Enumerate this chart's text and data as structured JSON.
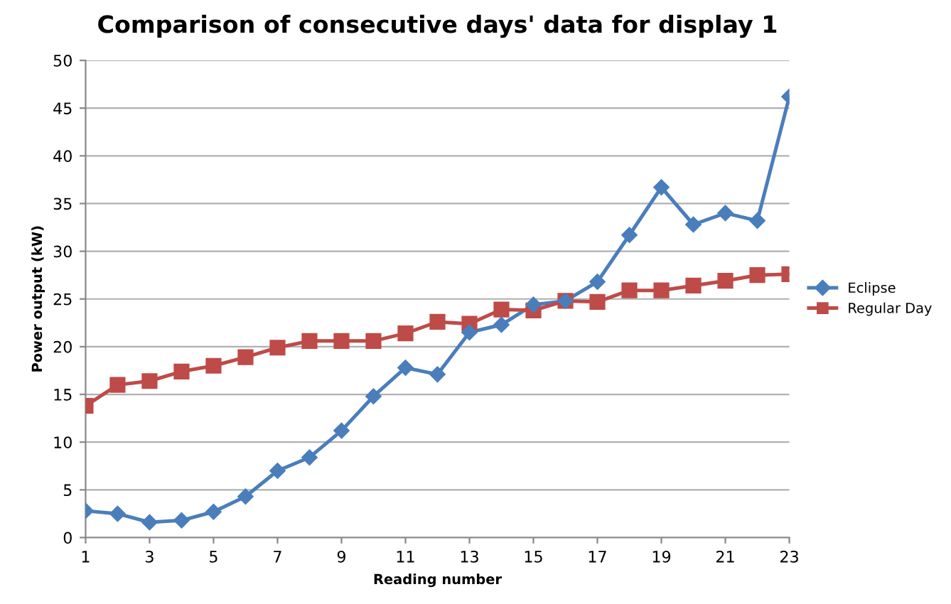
{
  "chart_data": {
    "type": "line",
    "title": "Comparison of consecutive days' data for display 1",
    "xlabel": "Reading number",
    "ylabel": "Power output (kW)",
    "x": [
      1,
      2,
      3,
      4,
      5,
      6,
      7,
      8,
      9,
      10,
      11,
      12,
      13,
      14,
      15,
      16,
      17,
      18,
      19,
      20,
      21,
      22,
      23
    ],
    "series": [
      {
        "name": "Eclipse",
        "color": "#4a7ebb",
        "marker": "diamond",
        "values": [
          2.8,
          2.5,
          1.6,
          1.8,
          2.7,
          4.3,
          7.0,
          8.4,
          11.2,
          14.8,
          17.8,
          17.1,
          21.5,
          22.3,
          24.4,
          24.8,
          26.8,
          31.7,
          36.7,
          32.8,
          34.0,
          33.2,
          46.2
        ]
      },
      {
        "name": "Regular Day",
        "color": "#be4b48",
        "marker": "square",
        "values": [
          13.8,
          16.0,
          16.4,
          17.4,
          18.0,
          18.9,
          19.9,
          20.6,
          20.6,
          20.6,
          21.4,
          22.6,
          22.4,
          23.9,
          23.8,
          24.8,
          24.7,
          25.9,
          25.9,
          26.4,
          26.9,
          27.5,
          27.6
        ]
      }
    ],
    "xlim": [
      1,
      23
    ],
    "xticks": [
      1,
      3,
      5,
      7,
      9,
      11,
      13,
      15,
      17,
      19,
      21,
      23
    ],
    "ylim": [
      0,
      50
    ],
    "yticks": [
      0,
      5,
      10,
      15,
      20,
      25,
      30,
      35,
      40,
      45,
      50
    ],
    "grid": "y",
    "legend": "right",
    "line_style": "solid"
  }
}
